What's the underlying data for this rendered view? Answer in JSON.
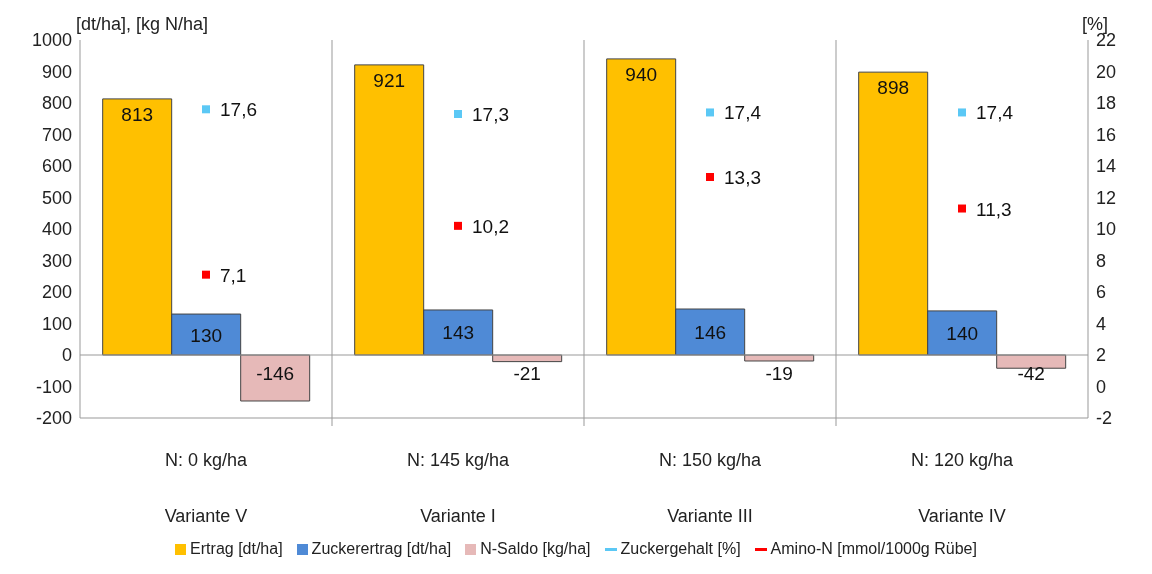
{
  "chart_data": {
    "type": "bar",
    "ylabel": "[dt/ha], [kg N/ha]",
    "y2label": "[%]",
    "categories": [
      "N: 0 kg/ha\nVariante V",
      "N: 145 kg/ha\nVariante I",
      "N: 150 kg/ha\nVariante III",
      "N: 120 kg/ha\nVariante IV"
    ],
    "series": [
      {
        "name": "Ertrag [dt/ha]",
        "color": "#ffc000",
        "values": [
          813,
          921,
          940,
          898
        ],
        "value_labels": [
          "813",
          "921",
          "940",
          "898"
        ]
      },
      {
        "name": "Zuckerertrag [dt/ha]",
        "color": "#4f8ad6",
        "values": [
          130,
          143,
          146,
          140
        ],
        "value_labels": [
          "130",
          "143",
          "146",
          "140"
        ]
      },
      {
        "name": "N-Saldo [kg/ha]",
        "color": "#e6b9b8",
        "values": [
          -146,
          -21,
          -19,
          -42
        ],
        "value_labels": [
          "-146",
          "-21",
          "-19",
          "-42"
        ]
      },
      {
        "name": "Zuckergehalt [%]",
        "type": "scatter",
        "axis": "y2",
        "marker": "square",
        "color": "#5bc8f5",
        "values": [
          17.6,
          17.3,
          17.4,
          17.4
        ],
        "value_labels": [
          "17,6",
          "17,3",
          "17,4",
          "17,4"
        ]
      },
      {
        "name": "Amino-N [mmol/1000g Rübe]",
        "type": "scatter",
        "axis": "y2",
        "marker": "square",
        "color": "#ff0000",
        "values": [
          7.1,
          10.2,
          13.3,
          11.3
        ],
        "value_labels": [
          "7,1",
          "10,2",
          "13,3",
          "11,3"
        ]
      }
    ],
    "ylim": [
      -200,
      1000
    ],
    "yticks": [
      -200,
      -100,
      0,
      100,
      200,
      300,
      400,
      500,
      600,
      700,
      800,
      900,
      1000
    ],
    "y2lim": [
      -2,
      22
    ],
    "y2ticks": [
      -2,
      0,
      2,
      4,
      6,
      8,
      10,
      12,
      14,
      16,
      18,
      20,
      22
    ],
    "ref_lines": [
      {
        "axis": "y",
        "value": 0,
        "color": "#999999"
      }
    ],
    "legend": "bottom"
  }
}
